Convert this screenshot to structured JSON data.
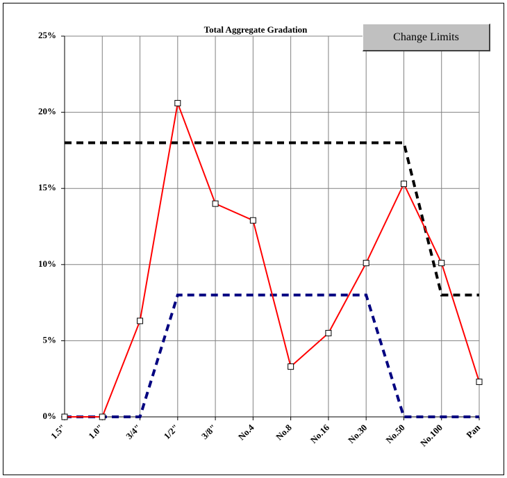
{
  "chart_data": {
    "type": "line",
    "title": "Total Aggregate Gradation",
    "categories": [
      "1.5\"",
      "1.0\"",
      "3/4\"",
      "1/2\"",
      "3/8\"",
      "No.4",
      "No.8",
      "No.16",
      "No.30",
      "No.50",
      "No.100",
      "Pan"
    ],
    "series": [
      {
        "color": "#ff0000",
        "style": "solid",
        "markers": true,
        "values": [
          0,
          0,
          6.3,
          20.6,
          14.0,
          12.9,
          3.3,
          5.5,
          10.1,
          15.3,
          10.1,
          2.3
        ]
      },
      {
        "color": "#000000",
        "style": "dashed",
        "markers": false,
        "values": [
          18,
          18,
          18,
          18,
          18,
          18,
          18,
          18,
          18,
          18,
          8,
          8
        ]
      },
      {
        "color": "#000080",
        "style": "dashed",
        "markers": false,
        "values": [
          0,
          0,
          0,
          8,
          8,
          8,
          8,
          8,
          8,
          0,
          0,
          0
        ]
      }
    ],
    "ylim": [
      0,
      25
    ],
    "yticks": [
      {
        "value": 0,
        "label": "0%"
      },
      {
        "value": 5,
        "label": "5%"
      },
      {
        "value": 10,
        "label": "10%"
      },
      {
        "value": 15,
        "label": "15%"
      },
      {
        "value": 20,
        "label": "20%"
      },
      {
        "value": 25,
        "label": "25%"
      }
    ],
    "grid": true
  },
  "button": {
    "label": "Change Limits"
  }
}
